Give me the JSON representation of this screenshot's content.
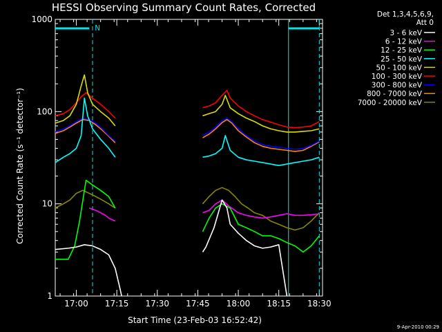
{
  "chart_data": {
    "type": "line",
    "title": "HESSI Observing Summary Count Rates, Corrected",
    "xlabel": "Start Time (23-Feb-03 16:52:42)",
    "ylabel": "Corrected Count Rate (s⁻¹ detector⁻¹)",
    "ylog": true,
    "ylim": [
      1,
      1000
    ],
    "xlim_minutes": [
      16.87,
      18.52
    ],
    "x_unit": "hours (UT)",
    "yticks": [
      "1",
      "10",
      "100",
      "1000"
    ],
    "xticks": [
      {
        "label": "17:00",
        "t": 17.0
      },
      {
        "label": "17:15",
        "t": 17.25
      },
      {
        "label": "17:30",
        "t": 17.5
      },
      {
        "label": "17:45",
        "t": 17.75
      },
      {
        "label": "18:00",
        "t": 18.0
      },
      {
        "label": "18:15",
        "t": 18.25
      },
      {
        "label": "18:30",
        "t": 18.5
      }
    ],
    "legend_header": [
      "Det 1,3,4,5,6,9,",
      "Att 0"
    ],
    "legend_placement": "right",
    "attenuator_bars": [
      {
        "t0": 16.87,
        "t1": 17.08,
        "label": "N"
      },
      {
        "t0": 18.31,
        "t1": 18.5,
        "label": ""
      }
    ],
    "vlines": [
      {
        "t": 17.1,
        "style": "dashed"
      },
      {
        "t": 18.31,
        "style": "solid"
      },
      {
        "t": 18.5,
        "style": "dashed"
      }
    ],
    "series": [
      {
        "name": "3 - 6 keV",
        "color": "#ffffff",
        "t": [
          16.87,
          16.95,
          17.0,
          17.05,
          17.1,
          17.15,
          17.2,
          17.24,
          17.27,
          17.28,
          17.78,
          17.8,
          17.85,
          17.9,
          17.93,
          17.95,
          18.0,
          18.05,
          18.1,
          18.15,
          18.2,
          18.25,
          18.3
        ],
        "v": [
          3.2,
          3.3,
          3.4,
          3.6,
          3.5,
          3.2,
          2.8,
          2.0,
          1.2,
          1.0,
          3.0,
          3.4,
          5.5,
          11,
          9.0,
          6.0,
          4.8,
          4.0,
          3.5,
          3.3,
          3.4,
          3.6,
          1.0
        ]
      },
      {
        "name": "6 - 12 keV",
        "color": "#ff00ff",
        "t": [
          17.08,
          17.12,
          17.15,
          17.18,
          17.2,
          17.24,
          17.78,
          17.82,
          17.86,
          17.9,
          17.94,
          18.0,
          18.05,
          18.1,
          18.15,
          18.2,
          18.25,
          18.3,
          18.35,
          18.4,
          18.45,
          18.5
        ],
        "v": [
          9.0,
          8.5,
          8.0,
          7.5,
          7.0,
          6.5,
          8.0,
          8.5,
          10,
          11,
          9.5,
          8.0,
          7.5,
          7.2,
          7.0,
          7.2,
          7.5,
          7.8,
          7.5,
          7.5,
          7.6,
          7.8
        ]
      },
      {
        "name": "12 - 25 keV",
        "color": "#00ff00",
        "t": [
          16.87,
          16.95,
          16.99,
          17.02,
          17.06,
          17.1,
          17.15,
          17.2,
          17.24,
          17.78,
          17.82,
          17.86,
          17.9,
          17.95,
          18.0,
          18.05,
          18.1,
          18.15,
          18.2,
          18.25,
          18.3,
          18.35,
          18.4,
          18.45,
          18.5
        ],
        "v": [
          2.5,
          2.5,
          3.5,
          6.5,
          18,
          16,
          14,
          12,
          9,
          5,
          7,
          9,
          10,
          9,
          6,
          5.5,
          5,
          4.5,
          4.5,
          4.2,
          3.8,
          3.5,
          3.0,
          3.5,
          4.5
        ]
      },
      {
        "name": "25 - 50 keV",
        "color": "#00ffff",
        "t": [
          16.87,
          16.92,
          16.96,
          17.0,
          17.03,
          17.05,
          17.07,
          17.1,
          17.15,
          17.2,
          17.24,
          17.78,
          17.82,
          17.86,
          17.9,
          17.92,
          17.95,
          18.0,
          18.05,
          18.1,
          18.15,
          18.2,
          18.25,
          18.3,
          18.35,
          18.4,
          18.45,
          18.5
        ],
        "v": [
          28,
          32,
          35,
          40,
          55,
          140,
          90,
          65,
          50,
          40,
          32,
          32,
          33,
          35,
          40,
          55,
          38,
          32,
          30,
          29,
          28,
          27,
          26,
          27,
          28,
          29,
          30,
          32
        ]
      },
      {
        "name": "50 - 100 keV",
        "color": "#dddd00",
        "t": [
          16.87,
          16.92,
          16.96,
          17.0,
          17.03,
          17.05,
          17.07,
          17.1,
          17.15,
          17.2,
          17.24,
          17.78,
          17.82,
          17.86,
          17.9,
          17.92,
          17.95,
          18.0,
          18.05,
          18.1,
          18.15,
          18.2,
          18.25,
          18.3,
          18.35,
          18.4,
          18.45,
          18.5
        ],
        "v": [
          75,
          80,
          90,
          120,
          190,
          250,
          160,
          120,
          100,
          85,
          70,
          90,
          95,
          100,
          120,
          150,
          110,
          95,
          85,
          78,
          70,
          65,
          62,
          60,
          60,
          61,
          62,
          65
        ]
      },
      {
        "name": "100 - 300 keV",
        "color": "#ff0000",
        "t": [
          16.87,
          16.92,
          16.96,
          17.0,
          17.03,
          17.06,
          17.1,
          17.15,
          17.2,
          17.24,
          17.78,
          17.82,
          17.86,
          17.9,
          17.93,
          17.95,
          18.0,
          18.05,
          18.1,
          18.15,
          18.2,
          18.25,
          18.3,
          18.35,
          18.4,
          18.45,
          18.5
        ],
        "v": [
          90,
          95,
          105,
          125,
          145,
          160,
          140,
          120,
          100,
          85,
          110,
          115,
          125,
          150,
          170,
          140,
          115,
          100,
          90,
          82,
          77,
          72,
          68,
          67,
          68,
          70,
          78
        ]
      },
      {
        "name": "300 - 800 keV",
        "color": "#0000ff",
        "t": [
          16.87,
          16.92,
          16.96,
          17.0,
          17.04,
          17.08,
          17.12,
          17.16,
          17.2,
          17.24,
          17.78,
          17.82,
          17.86,
          17.9,
          17.93,
          17.96,
          18.0,
          18.05,
          18.1,
          18.15,
          18.2,
          18.25,
          18.3,
          18.35,
          18.4,
          18.45,
          18.5
        ],
        "v": [
          60,
          65,
          70,
          78,
          85,
          82,
          75,
          65,
          55,
          48,
          55,
          60,
          68,
          80,
          85,
          78,
          65,
          55,
          48,
          44,
          42,
          41,
          40,
          39,
          40,
          43,
          48
        ]
      },
      {
        "name": "800 - 7000 keV",
        "color": "#ff8800",
        "t": [
          16.87,
          16.92,
          16.96,
          17.0,
          17.04,
          17.08,
          17.12,
          17.16,
          17.2,
          17.24,
          17.78,
          17.82,
          17.86,
          17.9,
          17.93,
          17.96,
          18.0,
          18.05,
          18.1,
          18.15,
          18.2,
          18.25,
          18.3,
          18.35,
          18.4,
          18.45,
          18.5
        ],
        "v": [
          58,
          62,
          68,
          75,
          82,
          80,
          72,
          63,
          54,
          46,
          52,
          57,
          65,
          76,
          82,
          75,
          62,
          53,
          46,
          42,
          40,
          39,
          38,
          37,
          38,
          42,
          47
        ]
      },
      {
        "name": "7000 - 20000 keV",
        "color": "#888800",
        "t": [
          16.87,
          16.92,
          16.96,
          17.0,
          17.04,
          17.08,
          17.12,
          17.16,
          17.2,
          17.24,
          17.78,
          17.82,
          17.86,
          17.9,
          17.94,
          17.98,
          18.02,
          18.06,
          18.1,
          18.15,
          18.2,
          18.25,
          18.3,
          18.35,
          18.4,
          18.45,
          18.5
        ],
        "v": [
          9,
          10,
          11,
          13,
          14,
          13,
          12,
          11,
          10,
          9,
          10,
          12,
          14,
          15,
          14,
          12,
          10,
          9,
          8,
          7.5,
          6.5,
          6,
          5.5,
          5.2,
          5.5,
          6.5,
          8
        ]
      }
    ],
    "legend_order": [
      "3 - 6 keV",
      "6 - 12 keV",
      "12 - 25 keV",
      "25 - 50 keV",
      "50 - 100 keV",
      "100 - 300 keV",
      "300 - 800 keV",
      "800 - 7000 keV",
      "7000 - 20000 keV"
    ]
  },
  "footer": {
    "date_stamp": "9-Apr-2010 00:29"
  }
}
